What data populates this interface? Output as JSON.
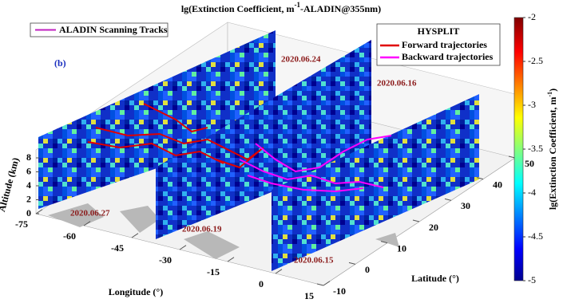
{
  "chart_data": {
    "type": "curtain3d",
    "title": [
      "lg(Extinction Coefficient, m",
      "-1",
      "-ALADIN@355nm)"
    ],
    "panel_label": "(b)",
    "xlabel": "Longitude (°)",
    "ylabel": "Latitude (°)",
    "zlabel": "Altitude (km)",
    "xlim": [
      -75,
      15
    ],
    "xticks": [
      -75,
      -60,
      -45,
      -30,
      -15,
      0,
      15
    ],
    "ylim": [
      -10,
      50
    ],
    "yticks": [
      -10,
      0,
      10,
      20,
      30,
      40,
      50
    ],
    "zlim": [
      0,
      8
    ],
    "zticks": [
      0,
      2,
      4,
      6,
      8
    ],
    "colorbar": {
      "label": [
        "lg(Extinction Coefficient, m",
        "-1",
        ")"
      ],
      "clim": [
        -5,
        -2
      ],
      "cticks": [
        -5,
        -4.5,
        -4,
        -3.5,
        -3,
        -2.5,
        -2
      ]
    },
    "track_legend": {
      "name": "ALADIN Scanning Tracks",
      "color": "#c020c0"
    },
    "hysplit_legend": {
      "title": "HYSPLIT",
      "items": [
        {
          "name": "Forward trajectories",
          "color": "#e00000"
        },
        {
          "name": "Backward trajectories",
          "color": "#ff00ff"
        }
      ]
    },
    "dates": [
      "2020.06.24",
      "2020.06.16",
      "2020.06.27",
      "2020.06.19",
      "2020.06.15"
    ]
  }
}
